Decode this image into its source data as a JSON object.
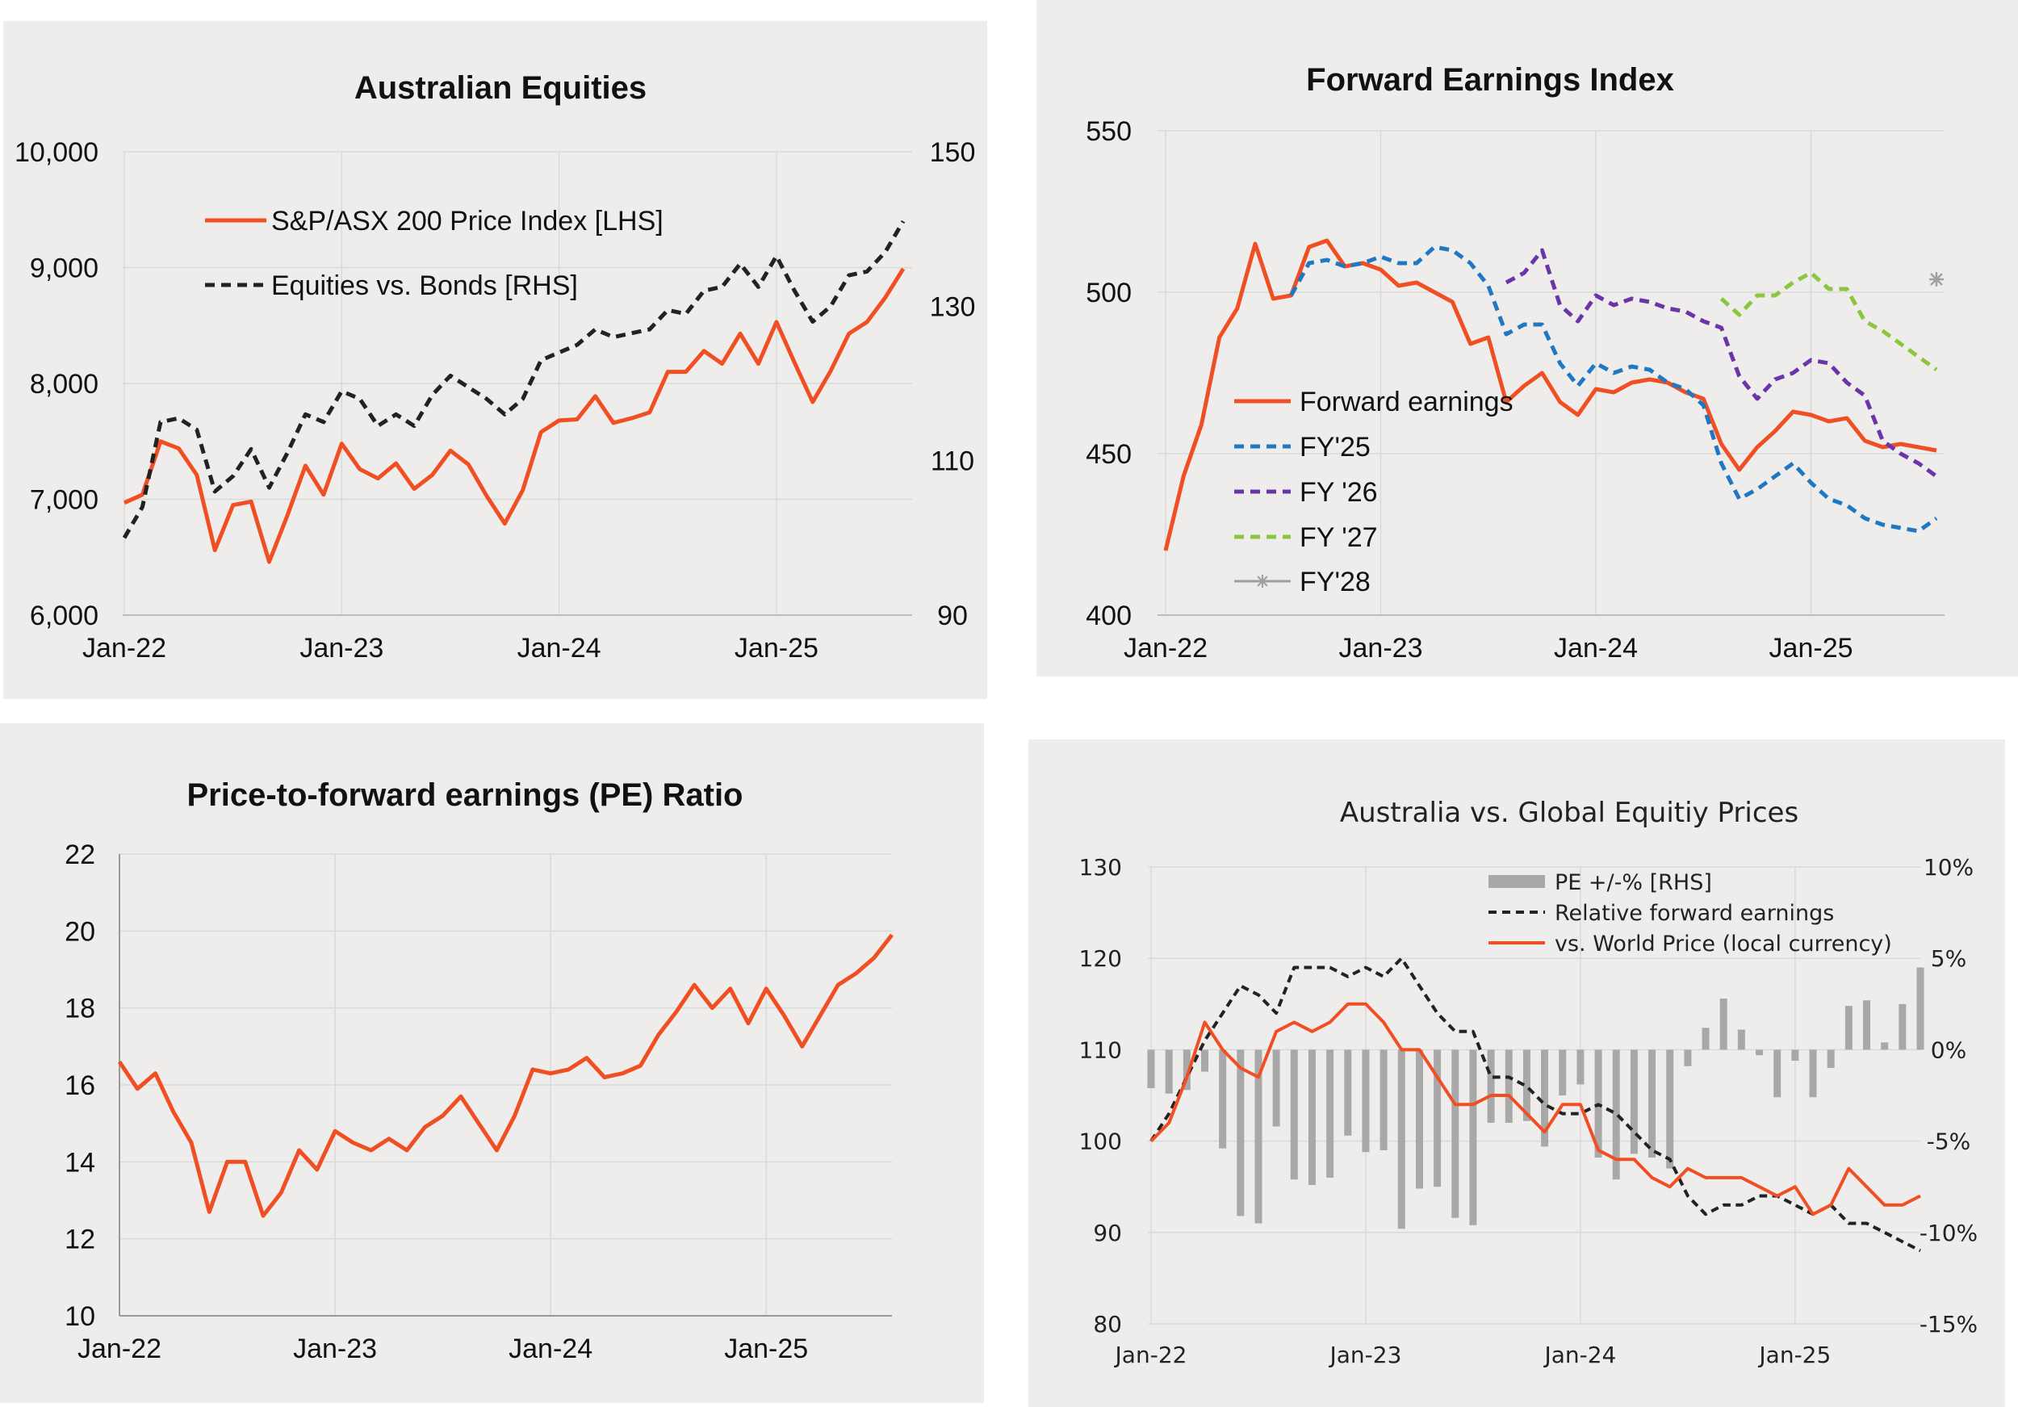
{
  "colors": {
    "panel_bg": "#eeedeb",
    "orange": "#f04e23",
    "black_dash": "#222222",
    "blue": "#1f78c1",
    "purple": "#6a35a8",
    "green": "#8cc63f",
    "gray": "#a0a0a0",
    "grid": "#d9d9d9"
  },
  "chart_data": [
    {
      "type": "line",
      "title": "Australian Equities",
      "x_tick_labels": [
        "Jan-22",
        "Jan-23",
        "Jan-24",
        "Jan-25"
      ],
      "left_axis": {
        "ylim": [
          6000,
          10000
        ],
        "ticks": [
          "6,000",
          "7,000",
          "8,000",
          "9,000",
          "10,000"
        ]
      },
      "right_axis": {
        "ylim": [
          90,
          150
        ],
        "ticks": [
          "90",
          "110",
          "130",
          "150"
        ]
      },
      "legend": "top-left",
      "grid": true,
      "series": [
        {
          "name": "S&P/ASX 200 Price Index [LHS]",
          "axis": "left",
          "color": "#f04e23",
          "dash": "solid",
          "x": [
            0,
            1,
            2,
            3,
            4,
            5,
            6,
            7,
            8,
            9,
            10,
            11,
            12,
            13,
            14,
            15,
            16,
            17,
            18,
            19,
            20,
            21,
            22,
            23,
            24,
            25,
            26,
            27,
            28,
            29,
            30,
            31,
            32,
            33,
            34,
            35,
            36,
            37,
            38,
            39,
            40,
            41,
            42,
            43
          ],
          "values": [
            6970,
            7040,
            7500,
            7440,
            7210,
            6560,
            6950,
            6980,
            6460,
            6860,
            7290,
            7040,
            7480,
            7260,
            7180,
            7310,
            7090,
            7210,
            7420,
            7300,
            7030,
            6790,
            7080,
            7580,
            7680,
            7690,
            7890,
            7660,
            7700,
            7750,
            8100,
            8100,
            8280,
            8170,
            8430,
            8170,
            8530,
            8180,
            7840,
            8110,
            8430,
            8530,
            8740,
            8990
          ]
        },
        {
          "name": "Equities vs. Bonds [RHS]",
          "axis": "right",
          "color": "#222222",
          "dash": "dashed",
          "x": [
            0,
            1,
            2,
            3,
            4,
            5,
            6,
            7,
            8,
            9,
            10,
            11,
            12,
            13,
            14,
            15,
            16,
            17,
            18,
            19,
            20,
            21,
            22,
            23,
            24,
            25,
            26,
            27,
            28,
            29,
            30,
            31,
            32,
            33,
            34,
            35,
            36,
            37,
            38,
            39,
            40,
            41,
            42,
            43
          ],
          "values": [
            100,
            104,
            115,
            115.5,
            114,
            106,
            108,
            111.5,
            106.5,
            111,
            116,
            115,
            119,
            118,
            114.5,
            116,
            114.5,
            118.5,
            121,
            119.5,
            118,
            116,
            118,
            123,
            124,
            125,
            127,
            126,
            126.5,
            127,
            129.5,
            129,
            132,
            132.5,
            135.5,
            132.5,
            136.5,
            132,
            128,
            130,
            134,
            134.5,
            137,
            141
          ]
        }
      ]
    },
    {
      "type": "line",
      "title": "Forward Earnings Index",
      "x_tick_labels": [
        "Jan-22",
        "Jan-23",
        "Jan-24",
        "Jan-25"
      ],
      "ylim": [
        400,
        550
      ],
      "y_ticks": [
        "400",
        "450",
        "500",
        "550"
      ],
      "legend": "bottom-left",
      "grid": true,
      "series": [
        {
          "name": "Forward earnings",
          "color": "#f04e23",
          "dash": "solid",
          "x": [
            0,
            1,
            2,
            3,
            4,
            5,
            6,
            7,
            8,
            9,
            10,
            11,
            12,
            13,
            14,
            15,
            16,
            17,
            18,
            19,
            20,
            21,
            22,
            23,
            24,
            25,
            26,
            27,
            28,
            29,
            30,
            31,
            32,
            33,
            34,
            35,
            36,
            37,
            38,
            39,
            40,
            41,
            42,
            43
          ],
          "values": [
            420,
            443,
            459,
            486,
            495,
            515,
            498,
            499,
            514,
            516,
            508,
            509,
            507,
            502,
            503,
            500,
            497,
            484,
            486,
            466,
            471,
            475,
            466,
            462,
            470,
            469,
            472,
            473,
            472,
            469,
            467,
            453,
            445,
            452,
            457,
            463,
            462,
            460,
            461,
            454,
            452,
            453,
            452,
            451
          ]
        },
        {
          "name": "FY'25",
          "color": "#1f78c1",
          "dash": "dashed",
          "x": [
            7,
            8,
            9,
            10,
            11,
            12,
            13,
            14,
            15,
            16,
            17,
            18,
            19,
            20,
            21,
            22,
            23,
            24,
            25,
            26,
            27,
            28,
            29,
            30,
            31,
            32,
            33,
            34,
            35,
            36,
            37,
            38,
            39,
            40,
            41,
            42,
            43
          ],
          "values": [
            499,
            509,
            510,
            508,
            509,
            511,
            509,
            509,
            514,
            513,
            509,
            502,
            487,
            490,
            490,
            478,
            471,
            478,
            475,
            477,
            476,
            472,
            470,
            465,
            447,
            436,
            439,
            443,
            447,
            441,
            436,
            434,
            430,
            428,
            427,
            426,
            430
          ]
        },
        {
          "name": "FY '26",
          "color": "#6a35a8",
          "dash": "dashed",
          "x": [
            19,
            20,
            21,
            22,
            23,
            24,
            25,
            26,
            27,
            28,
            29,
            30,
            31,
            32,
            33,
            34,
            35,
            36,
            37,
            38,
            39,
            40,
            41,
            42,
            43
          ],
          "values": [
            503,
            506,
            513,
            496,
            491,
            499,
            496,
            498,
            497,
            495,
            494,
            491,
            489,
            474,
            467,
            473,
            475,
            479,
            478,
            472,
            468,
            454,
            450,
            447,
            443
          ]
        },
        {
          "name": "FY '27",
          "color": "#8cc63f",
          "dash": "dashed",
          "x": [
            31,
            32,
            33,
            34,
            35,
            36,
            37,
            38,
            39,
            40,
            41,
            42,
            43
          ],
          "values": [
            498,
            493,
            499,
            499,
            503,
            506,
            501,
            501,
            491,
            488,
            484,
            480,
            476
          ]
        },
        {
          "name": "FY'28",
          "color": "#a0a0a0",
          "dash": "solid",
          "x": [
            43
          ],
          "values": [
            504
          ]
        }
      ]
    },
    {
      "type": "line",
      "title": "Price-to-forward earnings (PE) Ratio",
      "x_tick_labels": [
        "Jan-22",
        "Jan-23",
        "Jan-24",
        "Jan-25"
      ],
      "ylim": [
        10,
        22
      ],
      "y_ticks": [
        "10",
        "12",
        "14",
        "16",
        "18",
        "20",
        "22"
      ],
      "grid": true,
      "series": [
        {
          "color": "#f04e23",
          "dash": "solid",
          "x": [
            0,
            1,
            2,
            3,
            4,
            5,
            6,
            7,
            8,
            9,
            10,
            11,
            12,
            13,
            14,
            15,
            16,
            17,
            18,
            19,
            20,
            21,
            22,
            23,
            24,
            25,
            26,
            27,
            28,
            29,
            30,
            31,
            32,
            33,
            34,
            35,
            36,
            37,
            38,
            39,
            40,
            41,
            42,
            43
          ],
          "values": [
            16.6,
            15.9,
            16.3,
            15.3,
            14.5,
            12.7,
            14.0,
            14.0,
            12.6,
            13.2,
            14.3,
            13.8,
            14.8,
            14.5,
            14.3,
            14.6,
            14.3,
            14.9,
            15.2,
            15.7,
            15.0,
            14.3,
            15.2,
            16.4,
            16.3,
            16.4,
            16.7,
            16.2,
            16.3,
            16.5,
            17.3,
            17.9,
            18.6,
            18.0,
            18.5,
            17.6,
            18.5,
            17.8,
            17.0,
            17.8,
            18.6,
            18.9,
            19.3,
            19.9
          ]
        }
      ]
    },
    {
      "type": "bar+line",
      "title": "Australia vs. Global Equitiy Prices",
      "x_tick_labels": [
        "Jan-22",
        "Jan-23",
        "Jan-24",
        "Jan-25"
      ],
      "left_axis": {
        "ylim": [
          80,
          130
        ],
        "ticks": [
          "80",
          "90",
          "100",
          "110",
          "120",
          "130"
        ]
      },
      "right_axis": {
        "ylim": [
          -15,
          10
        ],
        "ticks": [
          "-15%",
          "-10%",
          "-5%",
          "0%",
          "5%",
          "10%"
        ]
      },
      "legend": "top",
      "grid": true,
      "series": [
        {
          "name": "PE +/-% [RHS]",
          "axis": "right",
          "type": "bar",
          "color": "#a8a8a8",
          "x": [
            0,
            1,
            2,
            3,
            4,
            5,
            6,
            7,
            8,
            9,
            10,
            11,
            12,
            13,
            14,
            15,
            16,
            17,
            18,
            19,
            20,
            21,
            22,
            23,
            24,
            25,
            26,
            27,
            28,
            29,
            30,
            31,
            32,
            33,
            34,
            35,
            36,
            37,
            38,
            39,
            40,
            41,
            42,
            43
          ],
          "values": [
            -2.1,
            -2.4,
            -2.2,
            -1.2,
            -5.4,
            -9.1,
            -9.5,
            -4.2,
            -7.1,
            -7.4,
            -7.0,
            -4.7,
            -5.6,
            -5.5,
            -9.8,
            -7.6,
            -7.5,
            -9.2,
            -9.6,
            -4.0,
            -4.0,
            -3.9,
            -5.3,
            -2.5,
            -1.9,
            -5.9,
            -7.1,
            -5.7,
            -5.9,
            -6.5,
            -0.9,
            1.2,
            2.8,
            1.1,
            -0.3,
            -2.6,
            -0.6,
            -2.6,
            -1.0,
            2.4,
            2.7,
            0.4,
            2.5,
            4.5
          ]
        },
        {
          "name": "Relative forward earnings",
          "axis": "left",
          "type": "line",
          "color": "#222222",
          "dash": "dashed",
          "x": [
            0,
            1,
            2,
            3,
            4,
            5,
            6,
            7,
            8,
            9,
            10,
            11,
            12,
            13,
            14,
            15,
            16,
            17,
            18,
            19,
            20,
            21,
            22,
            23,
            24,
            25,
            26,
            27,
            28,
            29,
            30,
            31,
            32,
            33,
            34,
            35,
            36,
            37,
            38,
            39,
            40,
            41,
            42,
            43
          ],
          "values": [
            100,
            103,
            107,
            111,
            114,
            117,
            116,
            114,
            119,
            119,
            119,
            118,
            119,
            118,
            120,
            117,
            114,
            112,
            112,
            107,
            107,
            106,
            104,
            103,
            103,
            104,
            103,
            101,
            99,
            98,
            94,
            92,
            93,
            93,
            94,
            94,
            93,
            92,
            93,
            91,
            91,
            90,
            89,
            88
          ]
        },
        {
          "name": "vs. World Price (local currency)",
          "axis": "left",
          "type": "line",
          "color": "#f04e23",
          "dash": "solid",
          "x": [
            0,
            1,
            2,
            3,
            4,
            5,
            6,
            7,
            8,
            9,
            10,
            11,
            12,
            13,
            14,
            15,
            16,
            17,
            18,
            19,
            20,
            21,
            22,
            23,
            24,
            25,
            26,
            27,
            28,
            29,
            30,
            31,
            32,
            33,
            34,
            35,
            36,
            37,
            38,
            39,
            40,
            41,
            42,
            43
          ],
          "values": [
            100,
            102,
            107,
            113,
            110,
            108,
            107,
            112,
            113,
            112,
            113,
            115,
            115,
            113,
            110,
            110,
            107,
            104,
            104,
            105,
            105,
            103,
            101,
            104,
            104,
            99,
            98,
            98,
            96,
            95,
            97,
            96,
            96,
            96,
            95,
            94,
            95,
            92,
            93,
            97,
            95,
            93,
            93,
            94
          ]
        }
      ]
    }
  ]
}
